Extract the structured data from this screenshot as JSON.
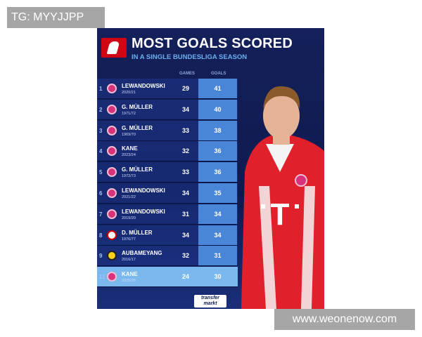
{
  "overlay_tag": "TG: MYYJJPP",
  "watermark": "www.weonenow.com",
  "header": {
    "title": "MOST GOALS SCORED",
    "subtitle": "IN A SINGLE BUNDESLIGA SEASON",
    "col_games": "GAMES",
    "col_goals": "GOALS"
  },
  "rows": [
    {
      "rank": "1",
      "name": "LEWANDOWSKI",
      "season": "2020/21",
      "games": "29",
      "goals": "41",
      "club": "bayern"
    },
    {
      "rank": "2",
      "name": "G. MÜLLER",
      "season": "1971/72",
      "games": "34",
      "goals": "40",
      "club": "bayern"
    },
    {
      "rank": "3",
      "name": "G. MÜLLER",
      "season": "1969/70",
      "games": "33",
      "goals": "38",
      "club": "bayern"
    },
    {
      "rank": "4",
      "name": "KANE",
      "season": "2023/24",
      "games": "32",
      "goals": "36",
      "club": "bayern"
    },
    {
      "rank": "5",
      "name": "G. MÜLLER",
      "season": "1972/73",
      "games": "33",
      "goals": "36",
      "club": "bayern"
    },
    {
      "rank": "6",
      "name": "LEWANDOWSKI",
      "season": "2021/22",
      "games": "34",
      "goals": "35",
      "club": "bayern"
    },
    {
      "rank": "7",
      "name": "LEWANDOWSKI",
      "season": "2019/20",
      "games": "31",
      "goals": "34",
      "club": "bayern"
    },
    {
      "rank": "8",
      "name": "D. MÜLLER",
      "season": "1976/77",
      "games": "34",
      "goals": "34",
      "club": "koln"
    },
    {
      "rank": "9",
      "name": "AUBAMEYANG",
      "season": "2016/17",
      "games": "32",
      "goals": "31",
      "club": "bvb"
    },
    {
      "rank": "11",
      "name": "KANE",
      "season": "2025/26",
      "games": "24",
      "goals": "30",
      "club": "bayern",
      "highlight": true
    }
  ],
  "brand": {
    "line1": "transfer",
    "line2": "markt"
  },
  "colors": {
    "background": "#15205a",
    "accent": "#4a86d8",
    "highlight": "#7ab8ee",
    "bundesliga_red": "#d20515"
  }
}
